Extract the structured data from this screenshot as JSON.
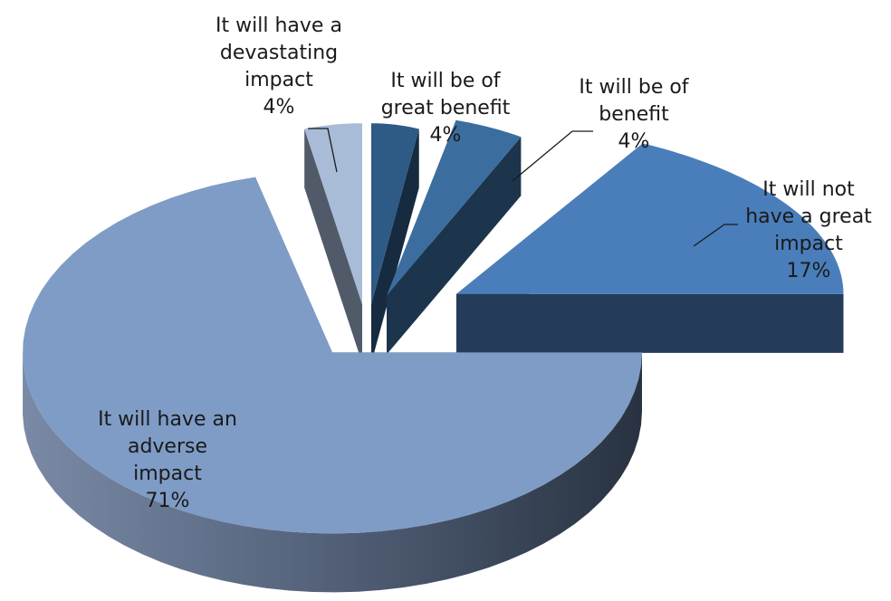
{
  "chart_data": {
    "type": "pie",
    "style": "3d-exploded",
    "title": "",
    "slices": [
      {
        "label": "It will be of great benefit",
        "value": 4,
        "value_label": "4%",
        "color": "#2e5a86"
      },
      {
        "label": "It will be of benefit",
        "value": 4,
        "value_label": "4%",
        "color": "#3b6e9f"
      },
      {
        "label": "It will not have a great impact",
        "value": 17,
        "value_label": "17%",
        "color": "#4a7ebb"
      },
      {
        "label": "It will have an adverse impact",
        "value": 71,
        "value_label": "71%",
        "color": "#7f9cc6"
      },
      {
        "label": "It will have a devastating impact",
        "value": 4,
        "value_label": "4%",
        "color": "#a8bcd8"
      }
    ],
    "legend": "none"
  }
}
